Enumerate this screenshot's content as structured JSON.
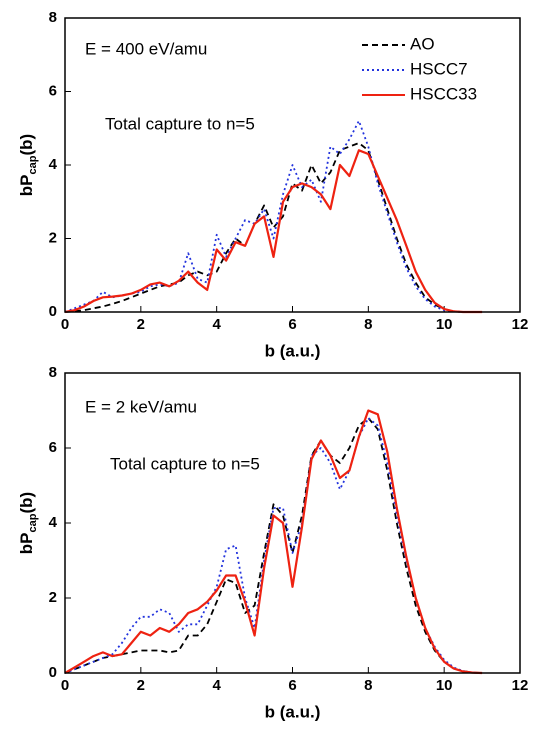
{
  "chart_data": [
    {
      "type": "line",
      "annotations": [
        "E = 400 eV/amu",
        "Total capture to n=5"
      ],
      "xlabel": "b (a.u.)",
      "ylabel": {
        "main": "bP",
        "sub": "cap",
        "tail": "(b)"
      },
      "xlim": [
        0,
        12
      ],
      "ylim": [
        0,
        8
      ],
      "xticks": [
        0,
        2,
        4,
        6,
        8,
        10,
        12
      ],
      "yticks": [
        0,
        2,
        4,
        6,
        8
      ],
      "legend": "upper right",
      "x": [
        0,
        0.25,
        0.5,
        0.75,
        1,
        1.25,
        1.5,
        1.75,
        2,
        2.25,
        2.5,
        2.75,
        3,
        3.25,
        3.5,
        3.75,
        4,
        4.25,
        4.5,
        4.75,
        5,
        5.25,
        5.5,
        5.75,
        6,
        6.25,
        6.5,
        6.75,
        7,
        7.25,
        7.5,
        7.75,
        8,
        8.25,
        8.5,
        8.75,
        9,
        9.25,
        9.5,
        9.75,
        10,
        10.25,
        10.5,
        10.75,
        11
      ],
      "series": [
        {
          "name": "AO",
          "color": "#000000",
          "dash": "dashed",
          "values": [
            0,
            0.02,
            0.05,
            0.1,
            0.15,
            0.22,
            0.3,
            0.4,
            0.5,
            0.6,
            0.7,
            0.75,
            0.8,
            1.0,
            1.1,
            1.0,
            1.1,
            1.6,
            2.0,
            1.8,
            2.4,
            2.9,
            2.3,
            2.6,
            3.5,
            3.3,
            4.0,
            3.5,
            3.8,
            4.4,
            4.5,
            4.6,
            4.4,
            3.6,
            2.8,
            2.0,
            1.3,
            0.8,
            0.4,
            0.2,
            0.08,
            0.02,
            0,
            0,
            0
          ]
        },
        {
          "name": "HSCC7",
          "color": "#2233dd",
          "dash": "dotted",
          "values": [
            0,
            0.1,
            0.2,
            0.3,
            0.55,
            0.4,
            0.45,
            0.5,
            0.55,
            0.7,
            0.75,
            0.7,
            0.8,
            1.6,
            0.9,
            0.8,
            2.1,
            1.5,
            2.0,
            2.5,
            2.4,
            2.8,
            2.0,
            3.2,
            4.0,
            3.4,
            3.6,
            3.0,
            4.5,
            4.3,
            4.7,
            5.2,
            4.5,
            3.5,
            2.7,
            1.9,
            1.2,
            0.7,
            0.35,
            0.15,
            0.05,
            0.01,
            0,
            0,
            0
          ]
        },
        {
          "name": "HSCC33",
          "color": "#ee2211",
          "dash": "solid",
          "values": [
            0,
            0.05,
            0.15,
            0.3,
            0.4,
            0.42,
            0.45,
            0.5,
            0.6,
            0.75,
            0.8,
            0.7,
            0.85,
            1.1,
            0.8,
            0.6,
            1.7,
            1.4,
            1.9,
            1.8,
            2.4,
            2.6,
            1.5,
            3.0,
            3.4,
            3.5,
            3.4,
            3.2,
            2.8,
            4.0,
            3.7,
            4.4,
            4.3,
            3.7,
            3.1,
            2.5,
            1.8,
            1.1,
            0.6,
            0.25,
            0.08,
            0.02,
            0,
            0,
            0
          ]
        }
      ]
    },
    {
      "type": "line",
      "annotations": [
        "E = 2 keV/amu",
        "Total capture to n=5"
      ],
      "xlabel": "b (a.u.)",
      "ylabel": {
        "main": "bP",
        "sub": "cap",
        "tail": "(b)"
      },
      "xlim": [
        0,
        12
      ],
      "ylim": [
        0,
        8
      ],
      "xticks": [
        0,
        2,
        4,
        6,
        8,
        10,
        12
      ],
      "yticks": [
        0,
        2,
        4,
        6,
        8
      ],
      "x": [
        0,
        0.25,
        0.5,
        0.75,
        1,
        1.25,
        1.5,
        1.75,
        2,
        2.25,
        2.5,
        2.75,
        3,
        3.25,
        3.5,
        3.75,
        4,
        4.25,
        4.5,
        4.75,
        5,
        5.25,
        5.5,
        5.75,
        6,
        6.25,
        6.5,
        6.75,
        7,
        7.25,
        7.5,
        7.75,
        8,
        8.25,
        8.5,
        8.75,
        9,
        9.25,
        9.5,
        9.75,
        10,
        10.25,
        10.5,
        10.75,
        11
      ],
      "series": [
        {
          "color": "#000000",
          "dash": "dashed",
          "values": [
            0,
            0.1,
            0.2,
            0.3,
            0.4,
            0.45,
            0.5,
            0.55,
            0.6,
            0.6,
            0.6,
            0.55,
            0.6,
            1.0,
            1.0,
            1.3,
            1.9,
            2.5,
            2.4,
            1.6,
            1.8,
            3.2,
            4.5,
            4.2,
            3.2,
            4.2,
            5.8,
            6.2,
            5.8,
            5.6,
            6.0,
            6.6,
            6.8,
            6.5,
            5.4,
            4.0,
            2.8,
            1.8,
            1.1,
            0.6,
            0.3,
            0.12,
            0.05,
            0.01,
            0
          ]
        },
        {
          "color": "#2233dd",
          "dash": "dotted",
          "values": [
            0,
            0.1,
            0.2,
            0.3,
            0.4,
            0.5,
            0.8,
            1.2,
            1.5,
            1.5,
            1.7,
            1.6,
            1.1,
            1.3,
            1.3,
            1.8,
            2.3,
            3.3,
            3.4,
            2.0,
            1.2,
            3.0,
            4.4,
            4.4,
            3.2,
            4.0,
            5.8,
            6.0,
            5.6,
            4.9,
            5.4,
            6.3,
            6.8,
            6.6,
            5.6,
            4.2,
            3.0,
            2.0,
            1.2,
            0.7,
            0.35,
            0.15,
            0.05,
            0.01,
            0
          ]
        },
        {
          "color": "#ee2211",
          "dash": "solid",
          "values": [
            0,
            0.15,
            0.3,
            0.45,
            0.55,
            0.45,
            0.5,
            0.8,
            1.1,
            1.0,
            1.2,
            1.1,
            1.3,
            1.6,
            1.7,
            1.9,
            2.2,
            2.6,
            2.6,
            1.9,
            1.0,
            2.8,
            4.2,
            4.0,
            2.3,
            3.9,
            5.7,
            6.2,
            5.8,
            5.2,
            5.4,
            6.3,
            7.0,
            6.9,
            5.9,
            4.4,
            3.1,
            2.0,
            1.2,
            0.65,
            0.3,
            0.12,
            0.04,
            0.01,
            0
          ]
        }
      ]
    }
  ]
}
